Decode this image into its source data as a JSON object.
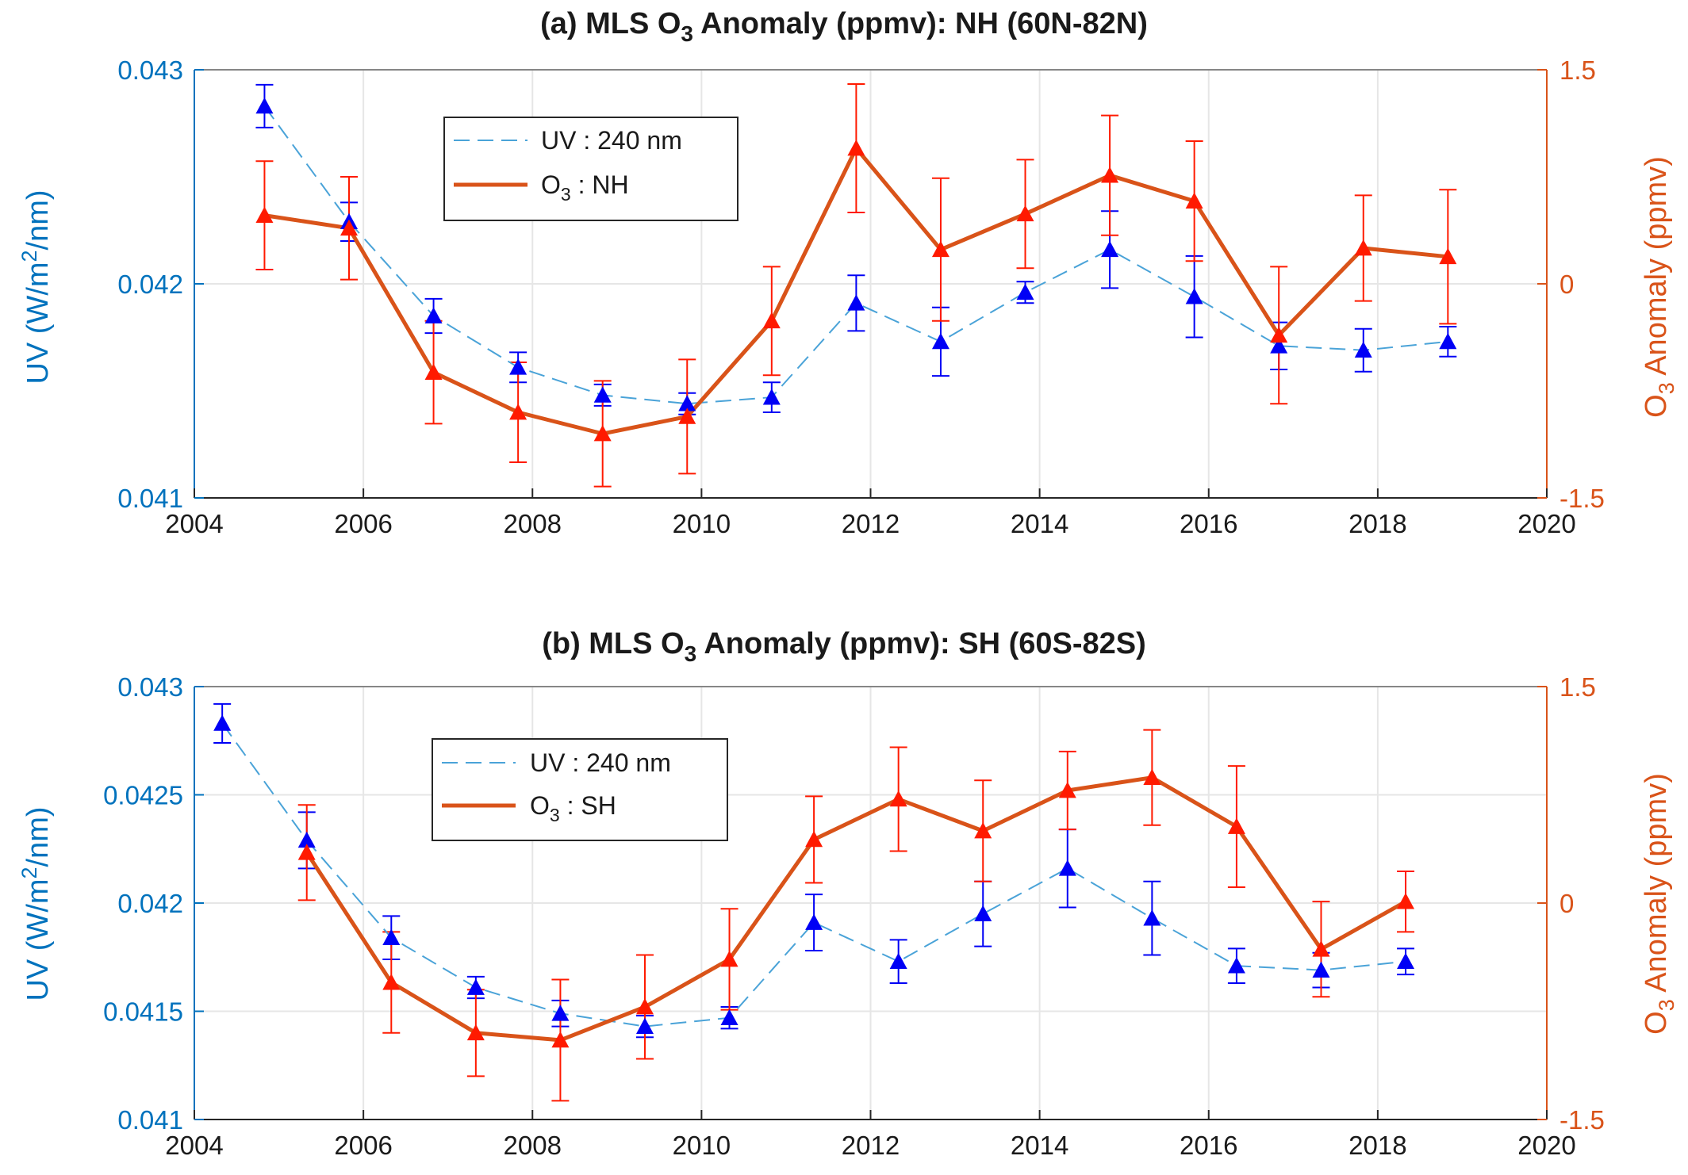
{
  "colors": {
    "uv": "#0000f5",
    "uv_line": "#4aa3d8",
    "uv_axis": "#0072bd",
    "o3_line": "#d95319",
    "o3_marker": "#ff1a00",
    "o3_axis": "#d95319",
    "grid": "#e6e6e6"
  },
  "chart_data": [
    {
      "type": "line",
      "title": {
        "prefix": "(a) MLS O",
        "sub": "3",
        "suffix": " Anomaly (ppmv):  NH (60N-82N)"
      },
      "xlim": [
        2004,
        2020
      ],
      "x_ticks": [
        "2004",
        "2006",
        "2008",
        "2010",
        "2012",
        "2014",
        "2016",
        "2018",
        "2020"
      ],
      "y_left": {
        "label_pre": "UV (W/m",
        "label_sup": "2",
        "label_post": "/nm)",
        "lim": [
          0.041,
          0.043
        ],
        "ticks": [
          "0.041",
          "0.042",
          "0.043"
        ]
      },
      "y_right": {
        "label_pre": "O",
        "label_sub": "3",
        "label_post": " Anomaly (ppmv)",
        "lim": [
          -1.5,
          1.5
        ],
        "ticks": [
          "-1.5",
          "0",
          "1.5"
        ]
      },
      "grid": true,
      "legend": {
        "position": "top-left",
        "uv_label": "UV : 240 nm",
        "o3_pre": "O",
        "o3_sub": "3",
        "o3_post": " : NH"
      },
      "series": [
        {
          "name": "UV : 240 nm",
          "axis": "left",
          "style": "dashed",
          "x": [
            2004.83,
            2005.83,
            2006.83,
            2007.83,
            2008.83,
            2009.83,
            2010.83,
            2011.83,
            2012.83,
            2013.83,
            2014.83,
            2015.83,
            2016.83,
            2017.83,
            2018.83
          ],
          "y": [
            0.04283,
            0.04229,
            0.04185,
            0.04161,
            0.04148,
            0.04144,
            0.04147,
            0.04191,
            0.04173,
            0.04196,
            0.04216,
            0.04194,
            0.04171,
            0.04169,
            0.04173
          ],
          "err": [
            0.0001,
            9e-05,
            8e-05,
            7e-05,
            5e-05,
            5e-05,
            7e-05,
            0.00013,
            0.00016,
            5e-05,
            0.00018,
            0.00019,
            0.00011,
            0.0001,
            7e-05
          ]
        },
        {
          "name": "O3 : NH",
          "axis": "right",
          "style": "solid",
          "x": [
            2004.83,
            2005.83,
            2006.83,
            2007.83,
            2008.83,
            2009.83,
            2010.83,
            2011.83,
            2012.83,
            2013.83,
            2014.83,
            2015.83,
            2016.83,
            2017.83,
            2018.83
          ],
          "y": [
            0.48,
            0.39,
            -0.62,
            -0.9,
            -1.05,
            -0.93,
            -0.26,
            0.95,
            0.24,
            0.49,
            0.76,
            0.58,
            -0.36,
            0.25,
            0.19
          ],
          "err": [
            0.38,
            0.36,
            0.36,
            0.35,
            0.37,
            0.4,
            0.38,
            0.45,
            0.5,
            0.38,
            0.42,
            0.42,
            0.48,
            0.37,
            0.47
          ]
        }
      ]
    },
    {
      "type": "line",
      "title": {
        "prefix": "(b) MLS O",
        "sub": "3",
        "suffix": " Anomaly (ppmv):  SH (60S-82S)"
      },
      "xlim": [
        2004,
        2020
      ],
      "x_ticks": [
        "2004",
        "2006",
        "2008",
        "2010",
        "2012",
        "2014",
        "2016",
        "2018",
        "2020"
      ],
      "y_left": {
        "label_pre": "UV (W/m",
        "label_sup": "2",
        "label_post": "/nm)",
        "lim": [
          0.041,
          0.043
        ],
        "ticks": [
          "0.041",
          "0.0415",
          "0.042",
          "0.0425",
          "0.043"
        ]
      },
      "y_right": {
        "label_pre": "O",
        "label_sub": "3",
        "label_post": " Anomaly (ppmv)",
        "lim": [
          -1.5,
          1.5
        ],
        "ticks": [
          "-1.5",
          "0",
          "1.5"
        ]
      },
      "grid": true,
      "legend": {
        "position": "top-left",
        "uv_label": "UV : 240 nm",
        "o3_pre": "O",
        "o3_sub": "3",
        "o3_post": " : SH"
      },
      "series": [
        {
          "name": "UV : 240 nm",
          "axis": "left",
          "style": "dashed",
          "x": [
            2004.33,
            2005.33,
            2006.33,
            2007.33,
            2008.33,
            2009.33,
            2010.33,
            2011.33,
            2012.33,
            2013.33,
            2014.33,
            2015.33,
            2016.33,
            2017.33,
            2018.33
          ],
          "y": [
            0.04283,
            0.04229,
            0.04184,
            0.04161,
            0.04149,
            0.04143,
            0.04147,
            0.04191,
            0.04173,
            0.04195,
            0.04216,
            0.04193,
            0.04171,
            0.04169,
            0.04173
          ],
          "err": [
            9e-05,
            0.00013,
            0.0001,
            5e-05,
            6e-05,
            5e-05,
            5e-05,
            0.00013,
            0.0001,
            0.00015,
            0.00018,
            0.00017,
            8e-05,
            8e-05,
            6e-05
          ]
        },
        {
          "name": "O3 : SH",
          "axis": "right",
          "style": "solid",
          "x": [
            2004.33,
            2005.33,
            2006.33,
            2007.33,
            2008.33,
            2009.33,
            2010.33,
            2011.33,
            2012.33,
            2013.33,
            2014.33,
            2015.33,
            2016.33,
            2017.33,
            2018.33
          ],
          "y": [
            null,
            0.35,
            -0.55,
            -0.9,
            -0.95,
            -0.72,
            -0.39,
            0.44,
            0.72,
            0.5,
            0.78,
            0.87,
            0.53,
            -0.32,
            0.01
          ],
          "err": [
            null,
            0.33,
            0.35,
            0.3,
            0.42,
            0.36,
            0.35,
            0.3,
            0.36,
            0.35,
            0.27,
            0.33,
            0.42,
            0.33,
            0.21
          ]
        }
      ]
    }
  ]
}
